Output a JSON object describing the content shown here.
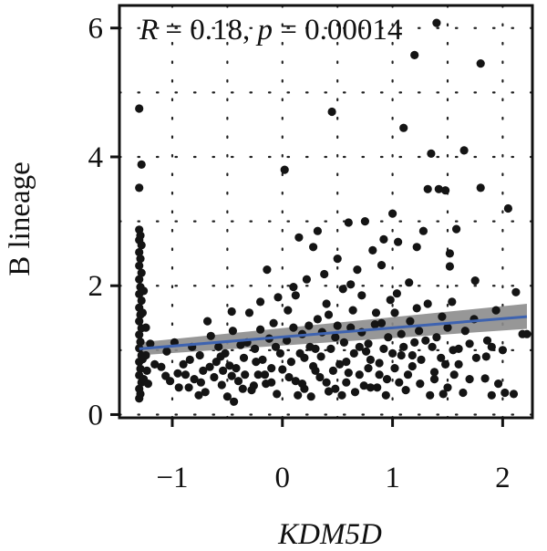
{
  "chart_data": {
    "type": "scatter",
    "xlabel": "KDM5D",
    "ylabel": "B lineage",
    "xlim": [
      -1.48,
      2.27
    ],
    "ylim": [
      -0.05,
      6.35
    ],
    "x_ticks": [
      -1,
      0,
      1,
      2
    ],
    "x_tick_labels": [
      "−1",
      "0",
      "1",
      "2"
    ],
    "y_ticks": [
      0,
      2,
      4,
      6
    ],
    "y_tick_labels": [
      "0",
      "2",
      "4",
      "6"
    ],
    "grid": "dotted",
    "annotation": {
      "r_symbol": "R",
      "r_text": " = 0.18, ",
      "p_symbol": "p",
      "p_text": " = 0.00014"
    },
    "regression": {
      "x": [
        -1.3,
        2.22
      ],
      "y": [
        1.02,
        1.52
      ],
      "ci_low": [
        0.92,
        1.33
      ],
      "ci_high": [
        1.12,
        1.72
      ],
      "line_color": "#3e63b0",
      "band_color": "#8c8c8c"
    },
    "point_color": "#141414",
    "points": [
      [
        -1.3,
        4.75
      ],
      [
        -1.28,
        3.88
      ],
      [
        -1.3,
        3.52
      ],
      [
        -1.3,
        2.87
      ],
      [
        -1.29,
        2.78
      ],
      [
        -1.3,
        2.71
      ],
      [
        -1.28,
        2.63
      ],
      [
        -1.3,
        2.52
      ],
      [
        -1.29,
        2.42
      ],
      [
        -1.3,
        2.31
      ],
      [
        -1.28,
        2.2
      ],
      [
        -1.3,
        2.1
      ],
      [
        -1.29,
        1.98
      ],
      [
        -1.3,
        1.87
      ],
      [
        -1.28,
        1.77
      ],
      [
        -1.3,
        1.66
      ],
      [
        -1.29,
        1.55
      ],
      [
        -1.3,
        1.45
      ],
      [
        -1.28,
        1.34
      ],
      [
        -1.3,
        1.24
      ],
      [
        -1.29,
        1.13
      ],
      [
        -1.3,
        1.03
      ],
      [
        -1.28,
        0.92
      ],
      [
        -1.3,
        0.82
      ],
      [
        -1.29,
        0.71
      ],
      [
        -1.3,
        0.61
      ],
      [
        -1.28,
        0.5
      ],
      [
        -1.3,
        0.4
      ],
      [
        -1.29,
        0.32
      ],
      [
        -1.3,
        0.25
      ],
      [
        -1.27,
        0.86
      ],
      [
        -1.27,
        1.58
      ],
      [
        -1.26,
        0.55
      ],
      [
        -1.26,
        1.92
      ],
      [
        -1.24,
        1.35
      ],
      [
        -1.24,
        0.92
      ],
      [
        -1.23,
        0.68
      ],
      [
        -1.22,
        0.48
      ],
      [
        -1.1,
        0.74
      ],
      [
        -1.02,
        0.52
      ],
      [
        -1.05,
        0.98
      ],
      [
        -0.98,
        1.12
      ],
      [
        -0.95,
        0.64
      ],
      [
        -0.9,
        0.78
      ],
      [
        -0.85,
        0.42
      ],
      [
        -0.8,
        0.55
      ],
      [
        -0.75,
        0.92
      ],
      [
        -0.72,
        0.68
      ],
      [
        -0.7,
        0.35
      ],
      [
        -0.65,
        1.22
      ],
      [
        -0.6,
        0.82
      ],
      [
        -0.55,
        0.46
      ],
      [
        -0.52,
        0.95
      ],
      [
        -0.5,
        0.28
      ],
      [
        -0.45,
        1.3
      ],
      [
        -0.42,
        0.72
      ],
      [
        -0.4,
        0.52
      ],
      [
        -0.38,
        1.08
      ],
      [
        -0.35,
        0.88
      ],
      [
        -0.3,
        1.58
      ],
      [
        -0.28,
        0.38
      ],
      [
        -0.25,
        1.02
      ],
      [
        -0.22,
        0.62
      ],
      [
        -0.2,
        1.75
      ],
      [
        -0.18,
        0.85
      ],
      [
        -0.15,
        0.48
      ],
      [
        -0.12,
        1.18
      ],
      [
        -0.1,
        0.72
      ],
      [
        -0.08,
        1.42
      ],
      [
        -0.05,
        0.32
      ],
      [
        -0.02,
        0.95
      ],
      [
        -0.68,
        1.45
      ],
      [
        -0.62,
        0.58
      ],
      [
        -0.58,
        1.05
      ],
      [
        -0.48,
        0.76
      ],
      [
        -0.44,
        0.2
      ],
      [
        -0.32,
        1.12
      ],
      [
        -0.26,
        0.45
      ],
      [
        -0.82,
        1.05
      ],
      [
        -0.88,
        0.62
      ],
      [
        -0.76,
        0.3
      ],
      [
        -0.66,
        0.74
      ],
      [
        -0.56,
        0.9
      ],
      [
        -0.46,
        0.6
      ],
      [
        -0.36,
        0.4
      ],
      [
        0.02,
        3.8
      ],
      [
        0.05,
        1.62
      ],
      [
        0.08,
        0.82
      ],
      [
        0.1,
        1.98
      ],
      [
        0.12,
        0.52
      ],
      [
        0.15,
        2.75
      ],
      [
        0.18,
        1.25
      ],
      [
        0.2,
        0.4
      ],
      [
        0.22,
        2.1
      ],
      [
        0.25,
        1.05
      ],
      [
        0.28,
        2.6
      ],
      [
        0.3,
        0.68
      ],
      [
        0.32,
        1.48
      ],
      [
        0.35,
        0.9
      ],
      [
        0.38,
        2.18
      ],
      [
        0.4,
        1.72
      ],
      [
        0.42,
        0.36
      ],
      [
        0.45,
        4.7
      ],
      [
        0.48,
        1.2
      ],
      [
        0.5,
        2.42
      ],
      [
        0.52,
        0.78
      ],
      [
        0.55,
        1.95
      ],
      [
        0.58,
        0.5
      ],
      [
        0.6,
        2.98
      ],
      [
        0.62,
        1.35
      ],
      [
        0.65,
        0.95
      ],
      [
        0.68,
        2.25
      ],
      [
        0.7,
        0.62
      ],
      [
        0.72,
        1.85
      ],
      [
        0.75,
        3.0
      ],
      [
        0.78,
        1.1
      ],
      [
        0.8,
        0.42
      ],
      [
        0.82,
        2.55
      ],
      [
        0.85,
        1.58
      ],
      [
        0.88,
        0.8
      ],
      [
        0.9,
        2.32
      ],
      [
        0.92,
        1.02
      ],
      [
        0.95,
        0.55
      ],
      [
        0.98,
        1.78
      ],
      [
        1.0,
        3.12
      ],
      [
        1.02,
        0.72
      ],
      [
        1.05,
        2.68
      ],
      [
        1.08,
        1.25
      ],
      [
        1.1,
        4.45
      ],
      [
        1.12,
        0.38
      ],
      [
        1.15,
        2.05
      ],
      [
        1.18,
        0.92
      ],
      [
        1.2,
        5.58
      ],
      [
        1.22,
        1.65
      ],
      [
        1.25,
        0.48
      ],
      [
        1.28,
        2.85
      ],
      [
        1.3,
        1.15
      ],
      [
        1.32,
        3.5
      ],
      [
        1.35,
        4.05
      ],
      [
        1.38,
        0.66
      ],
      [
        1.4,
        6.08
      ],
      [
        1.42,
        3.5
      ],
      [
        1.45,
        1.52
      ],
      [
        1.48,
        3.48
      ],
      [
        1.5,
        0.42
      ],
      [
        1.52,
        2.3
      ],
      [
        1.55,
        1.0
      ],
      [
        1.6,
        0.78
      ],
      [
        1.65,
        4.1
      ],
      [
        1.7,
        0.55
      ],
      [
        1.75,
        2.08
      ],
      [
        1.8,
        3.52
      ],
      [
        1.8,
        5.45
      ],
      [
        1.85,
        0.9
      ],
      [
        1.9,
        0.3
      ],
      [
        2.0,
        1.0
      ],
      [
        2.02,
        0.34
      ],
      [
        2.05,
        3.2
      ],
      [
        2.12,
        1.9
      ],
      [
        2.18,
        1.25
      ],
      [
        2.22,
        1.25
      ],
      [
        0.04,
        1.15
      ],
      [
        0.14,
        0.3
      ],
      [
        0.24,
        1.38
      ],
      [
        0.34,
        0.58
      ],
      [
        0.44,
        1.02
      ],
      [
        0.54,
        0.3
      ],
      [
        0.64,
        1.62
      ],
      [
        0.74,
        0.45
      ],
      [
        0.84,
        1.4
      ],
      [
        0.94,
        0.3
      ],
      [
        1.04,
        1.88
      ],
      [
        1.14,
        0.62
      ],
      [
        1.24,
        1.3
      ],
      [
        1.34,
        0.3
      ],
      [
        1.44,
        0.88
      ],
      [
        1.54,
        1.75
      ],
      [
        1.64,
        0.34
      ],
      [
        1.74,
        1.48
      ],
      [
        1.84,
        0.56
      ],
      [
        1.94,
        1.62
      ],
      [
        0.06,
        0.58
      ],
      [
        0.16,
        0.95
      ],
      [
        0.26,
        0.28
      ],
      [
        0.36,
        1.28
      ],
      [
        0.46,
        0.68
      ],
      [
        0.56,
        1.12
      ],
      [
        0.66,
        0.35
      ],
      [
        0.76,
        0.98
      ],
      [
        0.86,
        0.42
      ],
      [
        0.96,
        1.2
      ],
      [
        1.06,
        0.5
      ],
      [
        1.16,
        1.45
      ],
      [
        1.26,
        0.85
      ],
      [
        1.36,
        1.05
      ],
      [
        1.46,
        0.32
      ],
      [
        1.56,
        0.62
      ],
      [
        1.66,
        1.3
      ],
      [
        1.76,
        0.88
      ],
      [
        1.86,
        1.15
      ],
      [
        1.96,
        0.48
      ],
      [
        0.12,
        1.85
      ],
      [
        0.42,
        1.55
      ],
      [
        0.72,
        1.28
      ],
      [
        1.02,
        1.58
      ],
      [
        1.32,
        1.72
      ],
      [
        0.28,
        0.75
      ],
      [
        0.58,
        0.82
      ],
      [
        0.88,
        0.62
      ],
      [
        1.18,
        0.75
      ],
      [
        1.48,
        0.78
      ],
      [
        0.18,
        0.48
      ],
      [
        0.48,
        0.4
      ],
      [
        0.78,
        0.72
      ],
      [
        1.08,
        0.92
      ],
      [
        1.38,
        0.55
      ],
      [
        -0.14,
        2.25
      ],
      [
        -0.04,
        1.82
      ],
      [
        0.32,
        2.85
      ],
      [
        0.62,
        2.02
      ],
      [
        0.92,
        2.72
      ],
      [
        1.22,
        2.6
      ],
      [
        1.52,
        2.5
      ],
      [
        1.58,
        2.88
      ],
      [
        1.5,
        1.35
      ],
      [
        0.7,
        1.05
      ],
      [
        0.9,
        1.42
      ],
      [
        1.1,
        1.05
      ],
      [
        0.5,
        1.38
      ],
      [
        0.3,
        1.02
      ],
      [
        -0.06,
        1.05
      ],
      [
        -0.16,
        0.62
      ],
      [
        -0.24,
        0.82
      ],
      [
        -0.34,
        0.62
      ],
      [
        -0.54,
        0.68
      ],
      [
        -0.74,
        0.5
      ],
      [
        -0.84,
        0.85
      ],
      [
        -0.94,
        0.42
      ],
      [
        -1.06,
        0.6
      ],
      [
        -1.16,
        0.78
      ],
      [
        -1.2,
        1.1
      ],
      [
        -0.46,
        1.6
      ],
      [
        -0.2,
        1.32
      ],
      [
        -0.1,
        0.5
      ],
      [
        0.0,
        0.7
      ],
      [
        0.1,
        1.35
      ],
      [
        0.2,
        0.88
      ],
      [
        0.4,
        0.5
      ],
      [
        0.6,
        0.65
      ],
      [
        0.8,
        0.85
      ],
      [
        1.0,
        0.95
      ],
      [
        1.2,
        1.12
      ],
      [
        1.4,
        1.2
      ],
      [
        1.6,
        1.02
      ],
      [
        1.7,
        1.1
      ],
      [
        1.9,
        1.05
      ],
      [
        2.1,
        0.32
      ]
    ]
  }
}
